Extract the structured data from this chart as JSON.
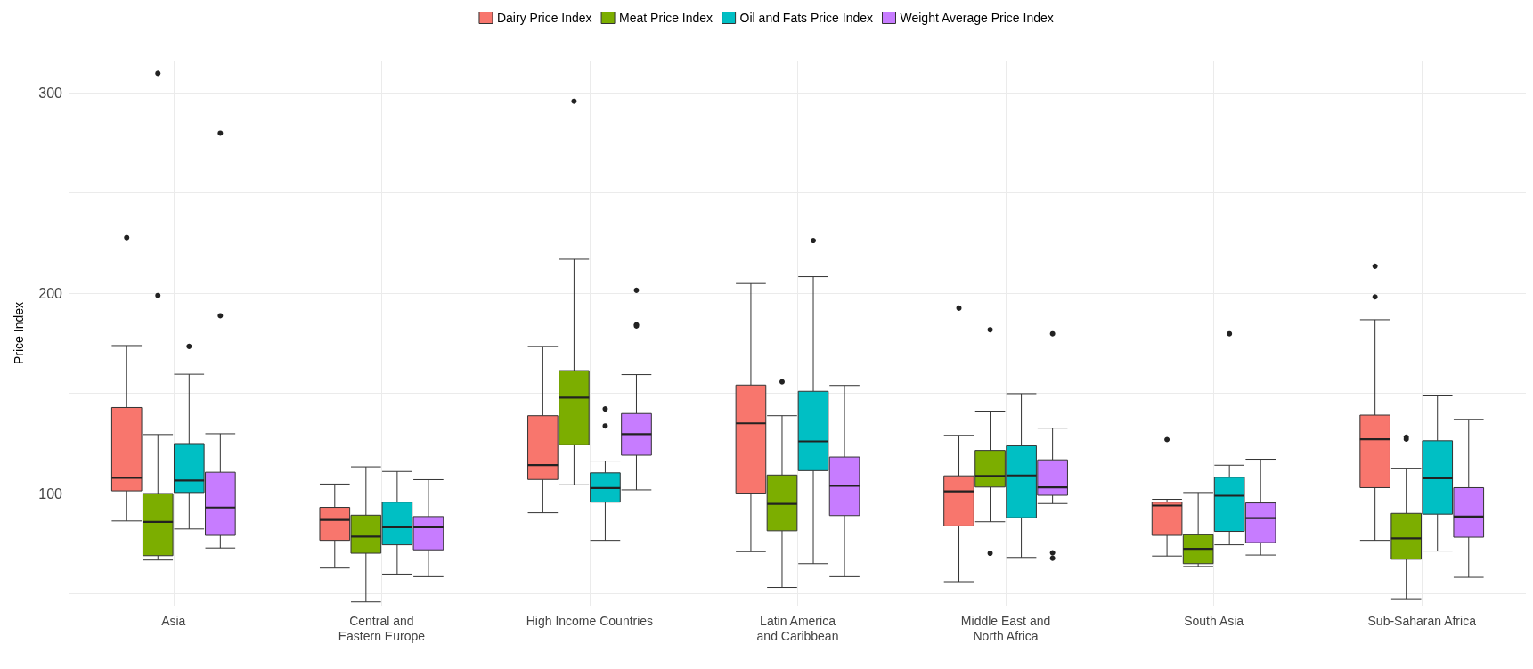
{
  "chart_data": {
    "type": "box",
    "ylabel": "Price Index",
    "categories": [
      "Asia",
      "Central and\nEastern Europe",
      "High Income Countries",
      "Latin America\nand Caribbean",
      "Middle East and\nNorth Africa",
      "South Asia",
      "Sub-Saharan Africa"
    ],
    "ylim": [
      44,
      316
    ],
    "yticks": [
      {
        "value": 50,
        "label": null
      },
      100,
      {
        "value": 150,
        "label": null
      },
      200,
      {
        "value": 250,
        "label": null
      },
      300
    ],
    "grid": true,
    "legend": "top",
    "series": [
      {
        "name": "Dairy Price Index",
        "color": "#f8766d",
        "boxes": [
          {
            "low": 86.3,
            "q1": 101.3,
            "median": 107.8,
            "q3": 142.9,
            "high": 173.8,
            "outliers": [
              227.7
            ]
          },
          {
            "low": 62.8,
            "q1": 76.6,
            "median": 86.8,
            "q3": 93.1,
            "high": 104.7
          },
          {
            "low": 90.4,
            "q1": 107,
            "median": 114.2,
            "q3": 138.8,
            "high": 173.4
          },
          {
            "low": 71,
            "q1": 100.2,
            "median": 135,
            "q3": 154.1,
            "high": 204.8
          },
          {
            "low": 56,
            "q1": 83.8,
            "median": 101.1,
            "q3": 108.8,
            "high": 129,
            "outliers": [
              192.5
            ]
          },
          {
            "low": 68.8,
            "q1": 79.1,
            "median": 94,
            "q3": 95.7,
            "high": 97.1,
            "outliers": [
              126.9
            ]
          },
          {
            "low": 76.6,
            "q1": 102.9,
            "median": 127.1,
            "q3": 139.1,
            "high": 186.7,
            "outliers": [
              213.4,
              198.1
            ]
          }
        ]
      },
      {
        "name": "Meat Price Index",
        "color": "#7cae00",
        "boxes": [
          {
            "low": 66.8,
            "q1": 69,
            "median": 85.8,
            "q3": 100,
            "high": 129.4,
            "outliers": [
              309.6,
              198.8
            ]
          },
          {
            "low": 45.9,
            "q1": 70.2,
            "median": 78.5,
            "q3": 89.2,
            "high": 113.3
          },
          {
            "low": 104.3,
            "q1": 124.3,
            "median": 147.8,
            "q3": 161.3,
            "high": 216.9,
            "outliers": [
              295.7
            ]
          },
          {
            "low": 53.1,
            "q1": 81.4,
            "median": 94.8,
            "q3": 109.2,
            "high": 138.8,
            "outliers": [
              155.7
            ]
          },
          {
            "low": 85.9,
            "q1": 103.2,
            "median": 108.7,
            "q3": 121.5,
            "high": 141.1,
            "outliers": [
              181.7,
              70.2
            ]
          },
          {
            "low": 63.6,
            "q1": 65,
            "median": 72.4,
            "q3": 79.4,
            "high": 100.5
          },
          {
            "low": 47.5,
            "q1": 67.2,
            "median": 77.6,
            "q3": 90.1,
            "high": 112.6,
            "outliers": [
              128.1,
              127.1
            ]
          }
        ]
      },
      {
        "name": "Oil and Fats Price Index",
        "color": "#00bfc4",
        "boxes": [
          {
            "low": 82.3,
            "q1": 100.5,
            "median": 106.5,
            "q3": 124.9,
            "high": 159.5,
            "outliers": [
              173.4
            ]
          },
          {
            "low": 59.8,
            "q1": 74.4,
            "median": 83.2,
            "q3": 95.7,
            "high": 111
          },
          {
            "low": 76.6,
            "q1": 95.7,
            "median": 102.7,
            "q3": 110.3,
            "high": 116.2,
            "outliers": [
              142.2,
              133.7
            ]
          },
          {
            "low": 65,
            "q1": 111.4,
            "median": 126,
            "q3": 151,
            "high": 208.2,
            "outliers": [
              226.2
            ]
          },
          {
            "low": 68.1,
            "q1": 87.9,
            "median": 109,
            "q3": 123.8,
            "high": 149.8
          },
          {
            "low": 74.4,
            "q1": 81.1,
            "median": 98.9,
            "q3": 108.1,
            "high": 114.1,
            "outliers": [
              179.7
            ]
          },
          {
            "low": 71.3,
            "q1": 89.7,
            "median": 107.6,
            "q3": 126.3,
            "high": 149.1
          }
        ]
      },
      {
        "name": "Weight Average Price Index",
        "color": "#c77cff",
        "boxes": [
          {
            "low": 72.8,
            "q1": 79.1,
            "median": 93,
            "q3": 110.6,
            "high": 129.8,
            "outliers": [
              279.8,
              188.7
            ]
          },
          {
            "low": 58.5,
            "q1": 71.9,
            "median": 83.2,
            "q3": 88.5,
            "high": 106.9
          },
          {
            "low": 101.8,
            "q1": 119.1,
            "median": 129.6,
            "q3": 139.9,
            "high": 159.3,
            "outliers": [
              201.4,
              184.2,
              183.6
            ]
          },
          {
            "low": 58.5,
            "q1": 89,
            "median": 103.8,
            "q3": 118.2,
            "high": 153.9
          },
          {
            "low": 95,
            "q1": 99.1,
            "median": 103.1,
            "q3": 116.8,
            "high": 132.6,
            "outliers": [
              179.7,
              70.4,
              67.7
            ]
          },
          {
            "low": 69.3,
            "q1": 75.5,
            "median": 87.7,
            "q3": 95.3,
            "high": 117.1
          },
          {
            "low": 58.2,
            "q1": 78.2,
            "median": 88.5,
            "q3": 102.9,
            "high": 137
          }
        ]
      }
    ]
  }
}
